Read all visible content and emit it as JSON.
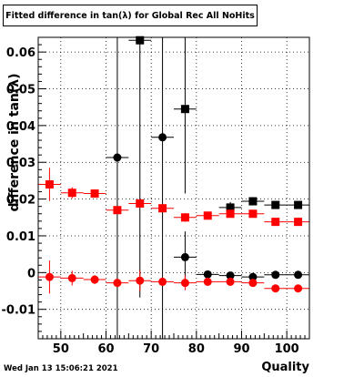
{
  "title": "Fitted difference in tan(λ) for Global Rec All NoHits",
  "footer": "Wed Jan 13 15:06:21 2021",
  "chart_data": {
    "type": "scatter",
    "xlabel": "Quality",
    "ylabel": "difference in tan(λ)",
    "xlim": [
      45,
      105
    ],
    "ylim": [
      -0.018,
      0.064
    ],
    "xticks": [
      50,
      60,
      70,
      80,
      90,
      100
    ],
    "yticks": [
      -0.01,
      0,
      0.01,
      0.02,
      0.03,
      0.04,
      0.05,
      0.06
    ],
    "xtick_labels": [
      "50",
      "60",
      "70",
      "80",
      "90",
      "100"
    ],
    "ytick_labels": [
      "-0.01",
      "0",
      "0.01",
      "0.02",
      "0.03",
      "0.04",
      "0.05",
      "0.06"
    ],
    "grid": true,
    "series": [
      {
        "color": "#000000",
        "marker": "circle",
        "points": [
          {
            "x": 62.5,
            "y": 0.0313,
            "yerr": 0.07
          },
          {
            "x": 72.5,
            "y": 0.0368,
            "yerr": 0.07
          },
          {
            "x": 77.5,
            "y": 0.0042,
            "yerr": 0.007
          },
          {
            "x": 82.5,
            "y": -0.0005,
            "yerr": 0.001
          },
          {
            "x": 87.5,
            "y": -0.0008,
            "yerr": 0.0005
          },
          {
            "x": 92.5,
            "y": -0.0012,
            "yerr": 0.0004
          },
          {
            "x": 97.5,
            "y": -0.0006,
            "yerr": 0.0003
          },
          {
            "x": 102.5,
            "y": -0.0006,
            "yerr": 0.0002
          }
        ]
      },
      {
        "color": "#000000",
        "marker": "square",
        "points": [
          {
            "x": 67.5,
            "y": 0.0632,
            "yerr": 0.07
          },
          {
            "x": 77.5,
            "y": 0.0445,
            "yerr": 0.023
          },
          {
            "x": 87.5,
            "y": 0.0177,
            "yerr": 0.0015
          },
          {
            "x": 92.5,
            "y": 0.0194,
            "yerr": 0.0008
          },
          {
            "x": 97.5,
            "y": 0.0184,
            "yerr": 0.0005
          },
          {
            "x": 102.5,
            "y": 0.0184,
            "yerr": 0.0003
          }
        ]
      },
      {
        "color": "#ff0000",
        "marker": "circle",
        "points": [
          {
            "x": 47.5,
            "y": -0.0012,
            "yerr": 0.0045
          },
          {
            "x": 52.5,
            "y": -0.0015,
            "yerr": 0.002
          },
          {
            "x": 57.5,
            "y": -0.0019,
            "yerr": 0.0012
          },
          {
            "x": 62.5,
            "y": -0.0028,
            "yerr": 0.001
          },
          {
            "x": 67.5,
            "y": -0.0022,
            "yerr": 0.0028
          },
          {
            "x": 72.5,
            "y": -0.0025,
            "yerr": 0.0008
          },
          {
            "x": 77.5,
            "y": -0.0028,
            "yerr": 0.002
          },
          {
            "x": 82.5,
            "y": -0.0025,
            "yerr": 0.0005
          },
          {
            "x": 87.5,
            "y": -0.0025,
            "yerr": 0.0004
          },
          {
            "x": 92.5,
            "y": -0.0028,
            "yerr": 0.0003
          },
          {
            "x": 97.5,
            "y": -0.0043,
            "yerr": 0.0003
          },
          {
            "x": 102.5,
            "y": -0.0043,
            "yerr": 0.0002
          }
        ]
      },
      {
        "color": "#ff0000",
        "marker": "square",
        "points": [
          {
            "x": 47.5,
            "y": 0.024,
            "yerr": 0.0045
          },
          {
            "x": 52.5,
            "y": 0.0217,
            "yerr": 0.0015
          },
          {
            "x": 57.5,
            "y": 0.0215,
            "yerr": 0.001
          },
          {
            "x": 62.5,
            "y": 0.017,
            "yerr": 0.001
          },
          {
            "x": 67.5,
            "y": 0.0188,
            "yerr": 0.0012
          },
          {
            "x": 72.5,
            "y": 0.0175,
            "yerr": 0.001
          },
          {
            "x": 77.5,
            "y": 0.015,
            "yerr": 0.0012
          },
          {
            "x": 82.5,
            "y": 0.0155,
            "yerr": 0.0008
          },
          {
            "x": 87.5,
            "y": 0.016,
            "yerr": 0.0005
          },
          {
            "x": 92.5,
            "y": 0.016,
            "yerr": 0.0004
          },
          {
            "x": 97.5,
            "y": 0.0138,
            "yerr": 0.0003
          },
          {
            "x": 102.5,
            "y": 0.0138,
            "yerr": 0.0003
          }
        ]
      }
    ]
  }
}
